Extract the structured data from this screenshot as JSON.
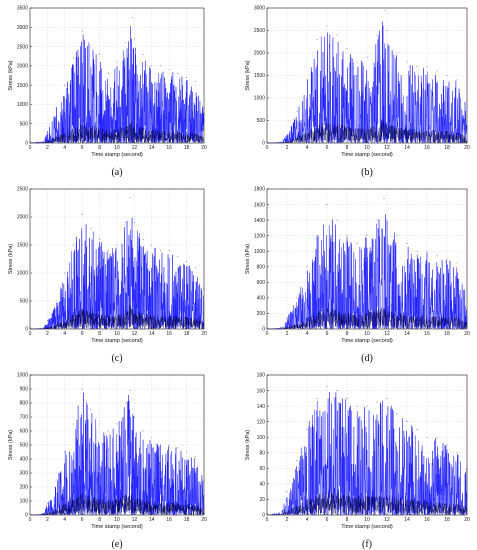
{
  "chart_data": [
    {
      "type": "line",
      "panel_label": "(a)",
      "xlabel": "Time stamp (second)",
      "ylabel": "Stress (kPa)",
      "xlim": [
        0,
        20
      ],
      "ylim": [
        0,
        3500
      ],
      "xticks": [
        0,
        2,
        4,
        6,
        8,
        10,
        12,
        14,
        16,
        18,
        20
      ],
      "yticks": [
        0,
        500,
        1000,
        1500,
        2000,
        2500,
        3000,
        3500
      ],
      "grid": true,
      "series": [
        {
          "values": {
            "x": [
              0,
              1.5,
              2,
              3,
              4,
              5,
              6,
              6.7,
              8,
              9,
              10,
              11,
              11.8,
              12,
              13,
              14,
              15,
              16,
              17,
              18,
              19,
              20
            ],
            "y": [
              0,
              50,
              300,
              900,
              1500,
              2200,
              2900,
              2600,
              2300,
              1800,
              2100,
              2600,
              3250,
              2700,
              2300,
              2000,
              2000,
              1900,
              1800,
              1700,
              1600,
              900
            ]
          }
        }
      ],
      "colors": {
        "line": "#1a1aff",
        "dark": "#000044"
      }
    },
    {
      "type": "line",
      "panel_label": "(b)",
      "xlabel": "Time stamp (second)",
      "ylabel": "Stress (kPa)",
      "xlim": [
        0,
        20
      ],
      "ylim": [
        0,
        3000
      ],
      "xticks": [
        0,
        2,
        4,
        6,
        8,
        10,
        12,
        14,
        16,
        18,
        20
      ],
      "yticks": [
        0,
        500,
        1000,
        1500,
        2000,
        2500,
        3000
      ],
      "grid": true,
      "series": [
        {
          "values": {
            "x": [
              0,
              1.5,
              2,
              3,
              4,
              5,
              6,
              7,
              8,
              9,
              10,
              11,
              11.8,
              12,
              13,
              14,
              15,
              16,
              17,
              18,
              19,
              20
            ],
            "y": [
              0,
              30,
              200,
              700,
              1400,
              2300,
              2600,
              2400,
              2100,
              1800,
              1900,
              2400,
              2950,
              2500,
              2000,
              1800,
              1700,
              1700,
              1600,
              1500,
              1400,
              800
            ]
          }
        }
      ],
      "colors": {
        "line": "#1a1aff",
        "dark": "#000044"
      }
    },
    {
      "type": "line",
      "panel_label": "(c)",
      "xlabel": "Time stamp (second)",
      "ylabel": "Stress (kPa)",
      "xlim": [
        0,
        20
      ],
      "ylim": [
        0,
        2500
      ],
      "xticks": [
        0,
        2,
        4,
        6,
        8,
        10,
        12,
        14,
        16,
        18,
        20
      ],
      "yticks": [
        0,
        500,
        1000,
        1500,
        2000,
        2500
      ],
      "grid": true,
      "series": [
        {
          "values": {
            "x": [
              0,
              1.5,
              2,
              3,
              4,
              5,
              6,
              7,
              8,
              9,
              10,
              11,
              11.5,
              12,
              13,
              14,
              15,
              16,
              17,
              18,
              19,
              20
            ],
            "y": [
              0,
              20,
              150,
              500,
              1000,
              1500,
              2050,
              1800,
              1600,
              1400,
              1500,
              1900,
              2350,
              1900,
              1600,
              1500,
              1400,
              1400,
              1300,
              1200,
              1100,
              700
            ]
          }
        }
      ],
      "colors": {
        "line": "#1a1aff",
        "dark": "#000044"
      }
    },
    {
      "type": "line",
      "panel_label": "(d)",
      "xlabel": "Time stamp (second)",
      "ylabel": "Stress (kPa)",
      "xlim": [
        0,
        20
      ],
      "ylim": [
        0,
        1800
      ],
      "xticks": [
        0,
        2,
        4,
        6,
        8,
        10,
        12,
        14,
        16,
        18,
        20
      ],
      "yticks": [
        0,
        200,
        400,
        600,
        800,
        1000,
        1200,
        1400,
        1600,
        1800
      ],
      "grid": true,
      "series": [
        {
          "values": {
            "x": [
              0,
              1.5,
              2,
              3,
              4,
              5,
              6,
              7,
              8,
              9,
              10,
              11,
              11.7,
              12,
              13,
              14,
              15,
              16,
              17,
              18,
              19,
              20
            ],
            "y": [
              0,
              20,
              150,
              400,
              800,
              1200,
              1600,
              1400,
              1200,
              1100,
              1200,
              1400,
              1680,
              1400,
              1200,
              1100,
              1000,
              1000,
              950,
              900,
              850,
              500
            ]
          }
        }
      ],
      "colors": {
        "line": "#1a1aff",
        "dark": "#000044"
      }
    },
    {
      "type": "line",
      "panel_label": "(e)",
      "xlabel": "Time stamp (second)",
      "ylabel": "Stress (kPa)",
      "xlim": [
        0,
        20
      ],
      "ylim": [
        0,
        1000
      ],
      "xticks": [
        0,
        2,
        4,
        6,
        8,
        10,
        12,
        14,
        16,
        18,
        20
      ],
      "yticks": [
        0,
        100,
        200,
        300,
        400,
        500,
        600,
        700,
        800,
        900,
        1000
      ],
      "grid": true,
      "series": [
        {
          "values": {
            "x": [
              0,
              1.5,
              2,
              3,
              4,
              5,
              6,
              7,
              8,
              9,
              10,
              11,
              11.5,
              12,
              13,
              14,
              15,
              16,
              17,
              18,
              19,
              20
            ],
            "y": [
              0,
              10,
              80,
              250,
              450,
              650,
              900,
              750,
              650,
              600,
              650,
              800,
              890,
              700,
              600,
              550,
              500,
              500,
              480,
              450,
              420,
              250
            ]
          }
        }
      ],
      "colors": {
        "line": "#1a1aff",
        "dark": "#000044"
      }
    },
    {
      "type": "line",
      "panel_label": "(f)",
      "xlabel": "Time stamp (second)",
      "ylabel": "Stress (kPa)",
      "xlim": [
        0,
        20
      ],
      "ylim": [
        0,
        180
      ],
      "xticks": [
        0,
        2,
        4,
        6,
        8,
        10,
        12,
        14,
        16,
        18,
        20
      ],
      "yticks": [
        0,
        20,
        40,
        60,
        80,
        100,
        120,
        140,
        160,
        180
      ],
      "grid": true,
      "series": [
        {
          "values": {
            "x": [
              0,
              1.5,
              2,
              3,
              4,
              5,
              6,
              7,
              8,
              9,
              10,
              11,
              12,
              13,
              14,
              15,
              16,
              17,
              18,
              19,
              20
            ],
            "y": [
              0,
              5,
              30,
              70,
              110,
              150,
              165,
              160,
              150,
              140,
              140,
              145,
              150,
              130,
              120,
              110,
              100,
              100,
              90,
              80,
              60
            ]
          }
        }
      ],
      "colors": {
        "line": "#1a1aff",
        "dark": "#000044"
      }
    }
  ]
}
